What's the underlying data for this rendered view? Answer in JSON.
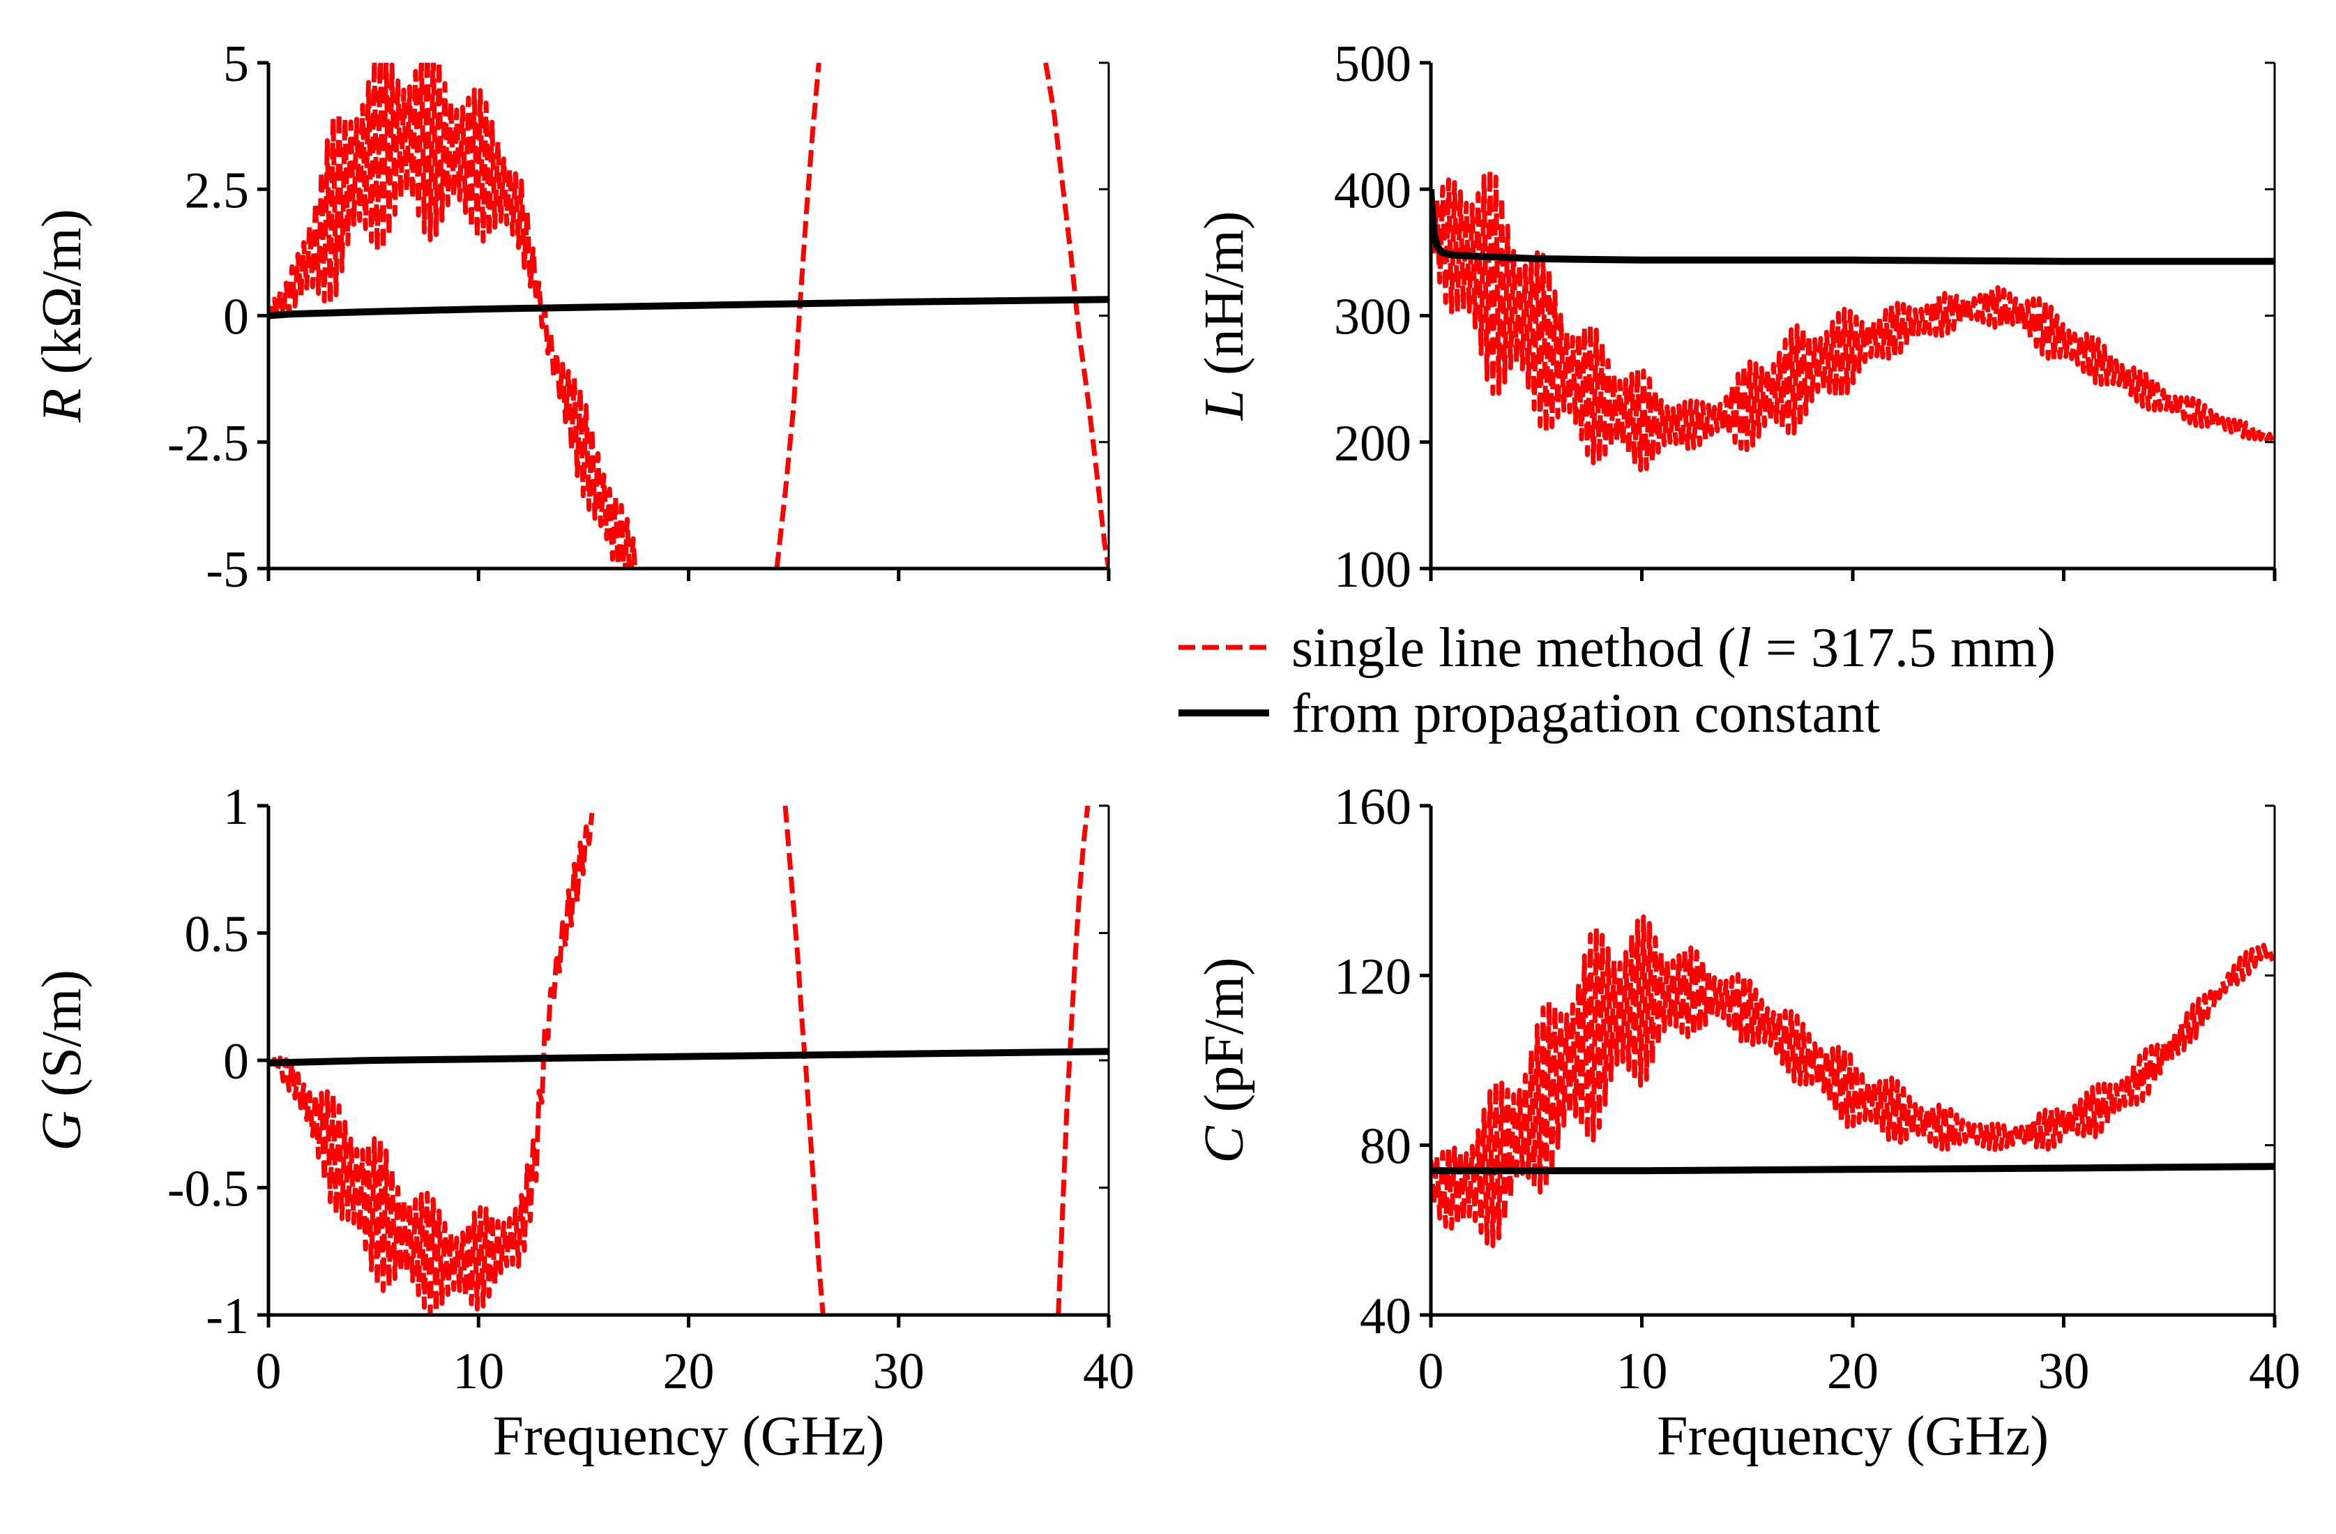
{
  "colors": {
    "single_line": "#ff0000",
    "propagation": "#000000",
    "axis": "#000000",
    "background": "#ffffff"
  },
  "legend": {
    "placement": "between-right-panels",
    "entries": [
      {
        "series": "single_line",
        "text_before": "single line method (",
        "italic": "l",
        "text_after": " = 317.5 mm)",
        "style": "dashed"
      },
      {
        "series": "propagation",
        "text": "from propagation constant",
        "style": "solid"
      }
    ]
  },
  "chart_data": [
    {
      "id": "R",
      "type": "line",
      "ylabel_symbol": "R",
      "ylabel_unit": " (kΩ/m)",
      "xlabel": "",
      "xlim": [
        0,
        40
      ],
      "ylim": [
        -5,
        5
      ],
      "xticks": [
        0,
        10,
        20,
        30,
        40
      ],
      "xtick_labels": [],
      "yticks": [
        -5,
        -2.5,
        0,
        2.5,
        5
      ],
      "ytick_labels": [
        "-5",
        "-2.5",
        "0",
        "2.5",
        "5"
      ],
      "grid": false,
      "series": [
        {
          "key": "single_line",
          "style": "dashed",
          "oscillating": true,
          "x": [
            0,
            0.8,
            1.6,
            2.4,
            3.2,
            4,
            5,
            6,
            7,
            8,
            9,
            10,
            11,
            12,
            12.8,
            13.5,
            14.5,
            15.5,
            16.5,
            17.5
          ],
          "y": [
            0.1,
            0.3,
            0.9,
            1.5,
            2.2,
            2.8,
            3.2,
            3.4,
            3.5,
            3.4,
            3.2,
            3.0,
            2.6,
            2.0,
            0.5,
            -0.8,
            -2.0,
            -3.2,
            -4.3,
            -5
          ],
          "amp": [
            0.1,
            0.3,
            0.9,
            1.4,
            1.9,
            2.0,
            2.0,
            2.0,
            2.0,
            1.9,
            1.7,
            1.5,
            1.3,
            0.9,
            0.3,
            0.6,
            0.9,
            1.1,
            1.1,
            0.4
          ]
        },
        {
          "key": "single_line",
          "style": "dashed",
          "oscillating": false,
          "x": [
            24.2,
            24.6,
            25.0,
            25.3,
            25.6,
            25.9,
            26.2
          ],
          "y": [
            -5,
            -3.5,
            -1.8,
            0.2,
            2.0,
            3.6,
            5
          ]
        },
        {
          "key": "single_line",
          "style": "dashed",
          "oscillating": false,
          "x": [
            37.0,
            37.4,
            37.8,
            38.2,
            38.6,
            39.0,
            39.4,
            39.8,
            40
          ],
          "y": [
            5,
            4.0,
            2.6,
            1.2,
            -0.4,
            -1.6,
            -3.0,
            -4.5,
            -5
          ]
        },
        {
          "key": "propagation",
          "style": "solid",
          "oscillating": false,
          "x": [
            0,
            1,
            5,
            10,
            20,
            30,
            40
          ],
          "y": [
            0,
            0.03,
            0.08,
            0.13,
            0.2,
            0.27,
            0.32
          ]
        }
      ]
    },
    {
      "id": "L",
      "type": "line",
      "ylabel_symbol": "L",
      "ylabel_unit": " (nH/m)",
      "xlabel": "",
      "xlim": [
        0,
        40
      ],
      "ylim": [
        100,
        500
      ],
      "xticks": [
        0,
        10,
        20,
        30,
        40
      ],
      "xtick_labels": [],
      "yticks": [
        100,
        200,
        300,
        400,
        500
      ],
      "ytick_labels": [
        "100",
        "200",
        "300",
        "400",
        "500"
      ],
      "grid": false,
      "series": [
        {
          "key": "single_line",
          "style": "dashed",
          "oscillating": true,
          "x": [
            0,
            0.5,
            1.5,
            2.5,
            3.5,
            4.5,
            5.5,
            6.5,
            7.5,
            8.5,
            9.5,
            10.5,
            11.5,
            12.5,
            13.5,
            14.5,
            15.5,
            16.5,
            17.5,
            18.5,
            19.5,
            20.5,
            21.5,
            22.5,
            23.5,
            24.5,
            25.5,
            26.5,
            27.5,
            28.5,
            29.5,
            30.5,
            31.5,
            32.5,
            33.5,
            34.5,
            35.5,
            36.5,
            37.5,
            38.5,
            39.5,
            40
          ],
          "y": [
            370,
            360,
            350,
            335,
            315,
            295,
            275,
            255,
            240,
            228,
            220,
            215,
            213,
            214,
            218,
            225,
            232,
            242,
            252,
            262,
            270,
            278,
            285,
            292,
            297,
            302,
            305,
            307,
            305,
            297,
            285,
            275,
            265,
            255,
            245,
            235,
            228,
            222,
            215,
            210,
            205,
            203
          ],
          "amp": [
            15,
            40,
            80,
            90,
            85,
            75,
            68,
            60,
            55,
            50,
            45,
            35,
            25,
            18,
            18,
            30,
            40,
            42,
            42,
            40,
            35,
            28,
            22,
            20,
            18,
            16,
            15,
            15,
            18,
            22,
            22,
            20,
            18,
            17,
            15,
            13,
            11,
            10,
            8,
            6,
            5,
            4
          ]
        },
        {
          "key": "propagation",
          "style": "solid",
          "oscillating": false,
          "x": [
            0,
            0.05,
            0.15,
            0.3,
            0.5,
            1,
            2,
            5,
            10,
            20,
            30,
            40
          ],
          "y": [
            400,
            385,
            365,
            355,
            350,
            348,
            347,
            345,
            344,
            344,
            343,
            343
          ]
        }
      ]
    },
    {
      "id": "G",
      "type": "line",
      "ylabel_symbol": "G",
      "ylabel_unit": " (S/m)",
      "xlabel": "Frequency (GHz)",
      "xlim": [
        0,
        40
      ],
      "ylim": [
        -1,
        1
      ],
      "xticks": [
        0,
        10,
        20,
        30,
        40
      ],
      "xtick_labels": [
        "0",
        "10",
        "20",
        "30",
        "40"
      ],
      "yticks": [
        -1,
        -0.5,
        0,
        0.5,
        1
      ],
      "ytick_labels": [
        "-1",
        "-0.5",
        "0",
        "0.5",
        "1"
      ],
      "grid": false,
      "series": [
        {
          "key": "single_line",
          "style": "dashed",
          "oscillating": true,
          "x": [
            0,
            0.5,
            1.2,
            2,
            3,
            4,
            5,
            6,
            7,
            8,
            9,
            10,
            11,
            12,
            12.7,
            13.2,
            13.7,
            14.2,
            14.7,
            15.2,
            15.5
          ],
          "y": [
            0,
            -0.02,
            -0.08,
            -0.2,
            -0.35,
            -0.48,
            -0.58,
            -0.66,
            -0.72,
            -0.78,
            -0.8,
            -0.78,
            -0.74,
            -0.68,
            -0.4,
            0.1,
            0.35,
            0.55,
            0.72,
            0.88,
            0.97
          ],
          "amp": [
            0,
            0.03,
            0.08,
            0.13,
            0.22,
            0.3,
            0.3,
            0.28,
            0.26,
            0.22,
            0.2,
            0.2,
            0.18,
            0.16,
            0.12,
            0.1,
            0.12,
            0.12,
            0.1,
            0.06,
            0.03
          ]
        },
        {
          "key": "single_line",
          "style": "dashed",
          "oscillating": false,
          "x": [
            24.6,
            24.9,
            25.2,
            25.4,
            25.6,
            25.8,
            26.0,
            26.2,
            26.4
          ],
          "y": [
            1,
            0.7,
            0.4,
            0.15,
            -0.05,
            -0.3,
            -0.55,
            -0.8,
            -1
          ]
        },
        {
          "key": "single_line",
          "style": "dashed",
          "oscillating": false,
          "x": [
            37.6,
            37.8,
            38.0,
            38.2,
            38.4,
            38.6,
            38.8,
            39.0
          ],
          "y": [
            -1,
            -0.6,
            -0.2,
            0.1,
            0.4,
            0.65,
            0.85,
            1
          ]
        },
        {
          "key": "propagation",
          "style": "solid",
          "oscillating": false,
          "x": [
            0,
            5,
            10,
            20,
            30,
            40
          ],
          "y": [
            -0.01,
            0,
            0.005,
            0.015,
            0.025,
            0.035
          ]
        }
      ]
    },
    {
      "id": "C",
      "type": "line",
      "ylabel_symbol": "C",
      "ylabel_unit": " (pF/m)",
      "xlabel": "Frequency (GHz)",
      "xlim": [
        0,
        40
      ],
      "ylim": [
        40,
        160
      ],
      "xticks": [
        0,
        10,
        20,
        30,
        40
      ],
      "xtick_labels": [
        "0",
        "10",
        "20",
        "30",
        "40"
      ],
      "yticks": [
        40,
        80,
        120,
        160
      ],
      "ytick_labels": [
        "40",
        "80",
        "120",
        "160"
      ],
      "grid": false,
      "series": [
        {
          "key": "single_line",
          "style": "dashed",
          "oscillating": true,
          "x": [
            0,
            0.5,
            1.5,
            2.5,
            3.5,
            4.5,
            5.5,
            6.5,
            7.5,
            8.5,
            9.5,
            10.5,
            11.5,
            12.5,
            13.5,
            14.5,
            15.5,
            16.5,
            17.5,
            18.5,
            19.5,
            20.5,
            21.5,
            22.5,
            23.5,
            24.5,
            25.5,
            26.5,
            27.5,
            28.5,
            29.5,
            30.5,
            31.5,
            32.5,
            33.5,
            34.5,
            35.5,
            36.5,
            37.5,
            38.5,
            39.5,
            40
          ],
          "y": [
            72,
            70,
            70,
            73,
            78,
            85,
            92,
            99,
            105,
            110,
            113,
            115,
            116,
            116,
            115,
            113,
            110,
            106,
            102,
            98,
            94,
            91,
            89,
            87,
            85,
            84,
            83,
            82,
            82,
            83,
            84,
            86,
            88,
            91,
            95,
            100,
            105,
            111,
            117,
            122,
            126,
            124
          ],
          "amp": [
            6,
            8,
            14,
            18,
            20,
            20,
            22,
            24,
            25,
            24,
            22,
            18,
            14,
            10,
            8,
            8,
            8,
            8,
            8,
            9,
            9,
            9,
            8,
            7,
            6,
            5,
            4,
            3,
            3,
            4,
            5,
            6,
            6,
            6,
            6,
            5,
            5,
            4,
            3,
            3,
            2,
            2
          ]
        },
        {
          "key": "propagation",
          "style": "solid",
          "oscillating": false,
          "x": [
            0,
            10,
            20,
            30,
            40
          ],
          "y": [
            74,
            74,
            74.3,
            74.6,
            75
          ]
        }
      ]
    }
  ]
}
